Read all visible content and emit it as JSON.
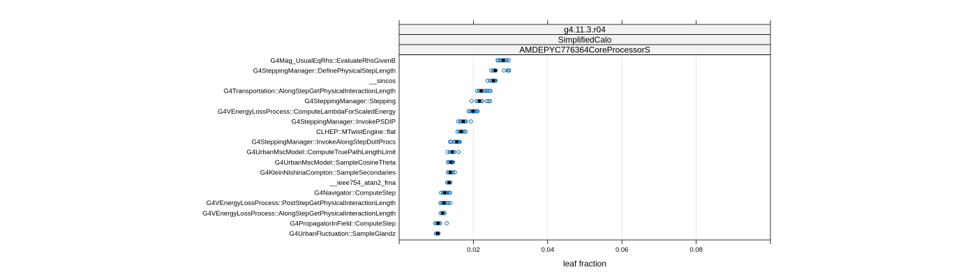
{
  "chart_data": {
    "type": "scatter",
    "strips": [
      "g4.11.3.r04",
      "SimplifiedCalo",
      "AMDEPYC776364CoreProcessorS"
    ],
    "xlabel": "leaf fraction",
    "xlim": [
      0.0,
      0.1
    ],
    "xticks": [
      0.02,
      0.04,
      0.06,
      0.08
    ],
    "xtick_labels": [
      "0.02",
      "0.04",
      "0.06",
      "0.08"
    ],
    "grid": true,
    "colors": {
      "points": "#1f78b4",
      "median": "#000000",
      "strip_bg": "#f2f2f2",
      "grid": "#e6e6e6"
    },
    "categories": [
      "G4Mag_UsualEqRhs::EvaluateRhsGivenB",
      "G4SteppingManager::DefinePhysicalStepLength",
      "__sincos",
      "G4Transportation::AlongStepGetPhysicalInteractionLength",
      "G4SteppingManager::Stepping",
      "G4VEnergyLossProcess::ComputeLambdaForScaledEnergy",
      "G4SteppingManager::InvokePSDIP",
      "CLHEP::MTwistEngine::flat",
      "G4SteppingManager::InvokeAlongStepDoItProcs",
      "G4UrbanMscModel::ComputeTruePathLengthLimit",
      "G4UrbanMscModel::SampleCosineTheta",
      "G4KleinNishinaCompton::SampleSecondaries",
      "__ieee754_atan2_fma",
      "G4Navigator::ComputeStep",
      "G4VEnergyLossProcess::PostStepGetPhysicalInteractionLength",
      "G4VEnergyLossProcess::AlongStepGetPhysicalInteractionLength",
      "G4PropagatorInField::ComputeStep",
      "G4UrbanFluctuation::SampleGlandz"
    ],
    "points": [
      [
        0.0265,
        0.0268,
        0.0272,
        0.0276,
        0.028,
        0.0283,
        0.0287,
        0.029,
        0.0295
      ],
      [
        0.0248,
        0.0253,
        0.0256,
        0.0259,
        0.026,
        0.0282,
        0.0292,
        0.0295,
        0.0296
      ],
      [
        0.0238,
        0.0245,
        0.025,
        0.0253,
        0.0255,
        0.0258,
        0.026
      ],
      [
        0.021,
        0.0215,
        0.0219,
        0.0222,
        0.0228,
        0.0233,
        0.0238,
        0.0243,
        0.0246
      ],
      [
        0.0195,
        0.0208,
        0.0212,
        0.0216,
        0.022,
        0.0224,
        0.0236,
        0.0241,
        0.0245
      ],
      [
        0.0187,
        0.0191,
        0.0195,
        0.0198,
        0.02,
        0.0203,
        0.0206,
        0.0209,
        0.0211
      ],
      [
        0.0159,
        0.0164,
        0.0168,
        0.0171,
        0.0174,
        0.0177,
        0.018,
        0.0193
      ],
      [
        0.0157,
        0.0162,
        0.0165,
        0.0168,
        0.0171,
        0.0175,
        0.0179
      ],
      [
        0.0137,
        0.014,
        0.0148,
        0.0152,
        0.0156,
        0.0159,
        0.0161,
        0.0163
      ],
      [
        0.0131,
        0.0137,
        0.0141,
        0.0145,
        0.0148,
        0.016
      ],
      [
        0.0131,
        0.0135,
        0.0138,
        0.0141,
        0.0143,
        0.0145
      ],
      [
        0.0131,
        0.0135,
        0.0138,
        0.0141,
        0.0145,
        0.015
      ],
      [
        0.0129,
        0.0133,
        0.0135,
        0.0138
      ],
      [
        0.0113,
        0.0118,
        0.0121,
        0.0124,
        0.0127,
        0.013,
        0.0134,
        0.0137
      ],
      [
        0.0111,
        0.0115,
        0.0118,
        0.0121,
        0.0124,
        0.0128,
        0.0133,
        0.0138
      ],
      [
        0.0112,
        0.0116,
        0.0119,
        0.0122
      ],
      [
        0.0097,
        0.0101,
        0.0104,
        0.0107,
        0.011,
        0.0128
      ],
      [
        0.0099,
        0.0102,
        0.0104,
        0.0106
      ]
    ],
    "medians": [
      0.028,
      0.0259,
      0.0254,
      0.0221,
      0.0216,
      0.0199,
      0.0173,
      0.0167,
      0.0155,
      0.0143,
      0.014,
      0.0138,
      0.0135,
      0.0123,
      0.0121,
      0.0117,
      0.0105,
      0.0104
    ]
  }
}
